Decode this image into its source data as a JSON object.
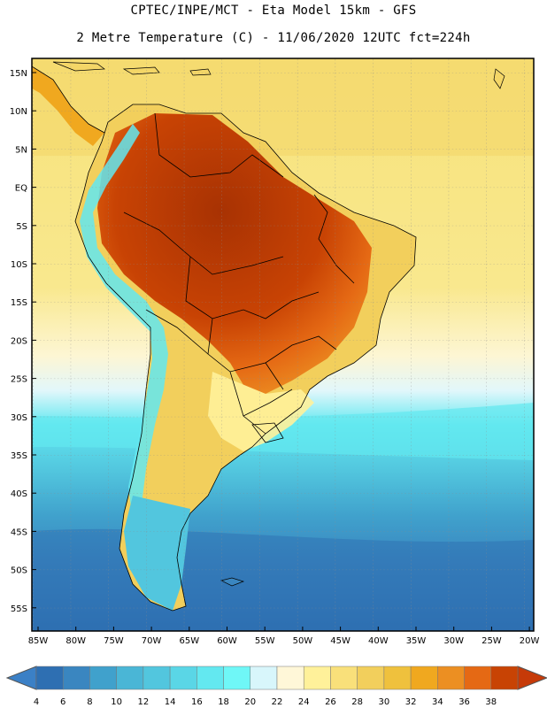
{
  "header": {
    "line1": "CPTEC/INPE/MCT -  Eta Model 15km - GFS",
    "line2": "2 Metre Temperature (C) - 11/06/2020 12UTC fct=224h"
  },
  "map": {
    "lat_labels": [
      "15N",
      "10N",
      "5N",
      "EQ",
      "5S",
      "10S",
      "15S",
      "20S",
      "25S",
      "30S",
      "35S",
      "40S",
      "45S",
      "50S",
      "55S"
    ],
    "lon_labels": [
      "85W",
      "80W",
      "75W",
      "70W",
      "65W",
      "60W",
      "55W",
      "50W",
      "45W",
      "40W",
      "35W",
      "30W",
      "25W",
      "20W"
    ]
  },
  "legend": {
    "values": [
      "4",
      "6",
      "8",
      "10",
      "12",
      "14",
      "16",
      "18",
      "20",
      "22",
      "24",
      "26",
      "28",
      "30",
      "32",
      "34",
      "36",
      "38"
    ],
    "colors": [
      "#2e6fb2",
      "#3a86c0",
      "#40a1cc",
      "#4ab6d6",
      "#52c6de",
      "#5ad6e6",
      "#63e8f0",
      "#6ff7f7",
      "#d8f6fb",
      "#fff7d8",
      "#fff19a",
      "#f9e07a",
      "#f2cf5c",
      "#efc13d",
      "#f0a81f",
      "#ec8f22",
      "#e56914",
      "#c84304"
    ],
    "under_color": "#3b80c6",
    "over_color": "#c63a08"
  }
}
